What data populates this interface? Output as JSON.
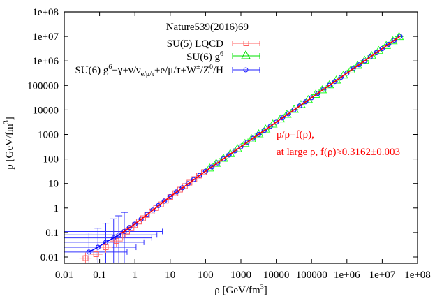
{
  "chart_data": {
    "type": "scatter",
    "title": "",
    "xlabel": "ρ [GeV/fm^3]",
    "ylabel": "p [GeV/fm^3]",
    "xscale": "log",
    "yscale": "log",
    "xlim": [
      0.01,
      100000000.0
    ],
    "ylim": [
      0.0055,
      100000000.0
    ],
    "grid": false,
    "legend_position": "upper left (inside)",
    "legend_title": "Nature539(2016)69",
    "x_ticks": [
      "0.01",
      "0.1",
      "1",
      "10",
      "100",
      "1000",
      "10000",
      "100000",
      "1e+06",
      "1e+07",
      "1e+08"
    ],
    "y_ticks": [
      "0.01",
      "0.1",
      "1",
      "10",
      "100",
      "1000",
      "10000",
      "100000",
      "1e+06",
      "1e+07",
      "1e+08"
    ],
    "annotations": [
      {
        "text": "p/ρ=f(ρ),",
        "color": "#ff0000"
      },
      {
        "text": "at large ρ, f(ρ)≈0.3162±0.003",
        "color": "#ff0000"
      }
    ],
    "series": [
      {
        "name": "SU(5) LQCD",
        "color": "#ff0000",
        "marker": "square",
        "x": [
          0.04,
          0.08,
          0.15,
          0.3,
          0.45,
          0.6,
          0.8,
          1.0,
          1.3,
          1.7,
          2.2,
          3,
          4,
          5.5,
          7.5,
          10,
          14,
          19,
          26,
          35,
          48,
          65,
          90
        ],
        "y": [
          0.009,
          0.013,
          0.025,
          0.045,
          0.08,
          0.11,
          0.15,
          0.2,
          0.28,
          0.38,
          0.52,
          0.72,
          1.0,
          1.4,
          2.0,
          2.8,
          4.0,
          5.6,
          7.8,
          10.8,
          15,
          21,
          29
        ]
      },
      {
        "name": "SU(6) g^6",
        "color": "#00ff00",
        "marker": "triangle",
        "x": [
          130,
          200,
          320,
          500,
          800,
          1300,
          2000,
          3200,
          5000,
          8000,
          13000,
          20000,
          32000,
          50000,
          80000,
          130000,
          200000,
          320000,
          500000,
          800000,
          1300000,
          2000000,
          3200000,
          5000000,
          8000000,
          13000000,
          20000000,
          30000000
        ],
        "y": [
          42,
          65,
          104,
          162,
          259,
          420,
          647,
          1036,
          1620,
          2590,
          4200,
          6470,
          10360,
          16200,
          25900,
          42000,
          64700,
          103600,
          162000,
          259000,
          420000,
          647000,
          1036000,
          1620000,
          2590000,
          4200000,
          6470000,
          9700000
        ]
      },
      {
        "name": "SU(6) g^6+γ+ν/ν_{e/μ/τ}+e/μ/τ+W^±/Z^0/H",
        "color": "#0000ff",
        "marker": "circle",
        "x": [
          0.05,
          0.09,
          0.15,
          0.25,
          0.35,
          0.5,
          0.7,
          1.0,
          1.5,
          2.2,
          3.2,
          4.6,
          6.8,
          10,
          15,
          22,
          32,
          46,
          68,
          100,
          150,
          220,
          320,
          460,
          680,
          1000,
          1500,
          2200,
          3200,
          4600,
          6800,
          10000,
          15000,
          22000,
          32000,
          46000,
          68000,
          100000,
          150000,
          220000,
          320000,
          460000,
          680000,
          1000000,
          1500000,
          2200000,
          3200000,
          4600000,
          6800000,
          10000000,
          15000000,
          22000000,
          32000000
        ],
        "y": [
          0.016,
          0.025,
          0.04,
          0.06,
          0.08,
          0.11,
          0.16,
          0.22,
          0.35,
          0.55,
          0.82,
          1.25,
          1.9,
          2.9,
          4.5,
          6.7,
          9.9,
          14.4,
          21.4,
          31.6,
          47.4,
          69.6,
          101,
          145,
          215,
          316,
          474,
          696,
          1012,
          1455,
          2150,
          3162,
          4743,
          6956,
          10118,
          14545,
          21500,
          31620,
          47430,
          69560,
          101180,
          145450,
          215000,
          316200,
          474300,
          695600,
          1011800,
          1454500,
          2150200,
          3162000,
          4743000,
          6956000,
          10118000
        ]
      }
    ],
    "fit_line": {
      "description": "red solid curve through data, p = f(ρ)·ρ",
      "color": "#ff0000",
      "x": [
        0.4,
        1,
        10,
        100,
        1000,
        10000,
        100000,
        1000000,
        10000000,
        32000000
      ],
      "y": [
        0.09,
        0.22,
        2.9,
        31.6,
        316,
        3162,
        31620,
        316200,
        3162000,
        10118000
      ]
    },
    "low_density_error_bars": {
      "description": "large blue error bars on SU(6)+SM series at ρ<1",
      "color": "#0000ff"
    }
  }
}
